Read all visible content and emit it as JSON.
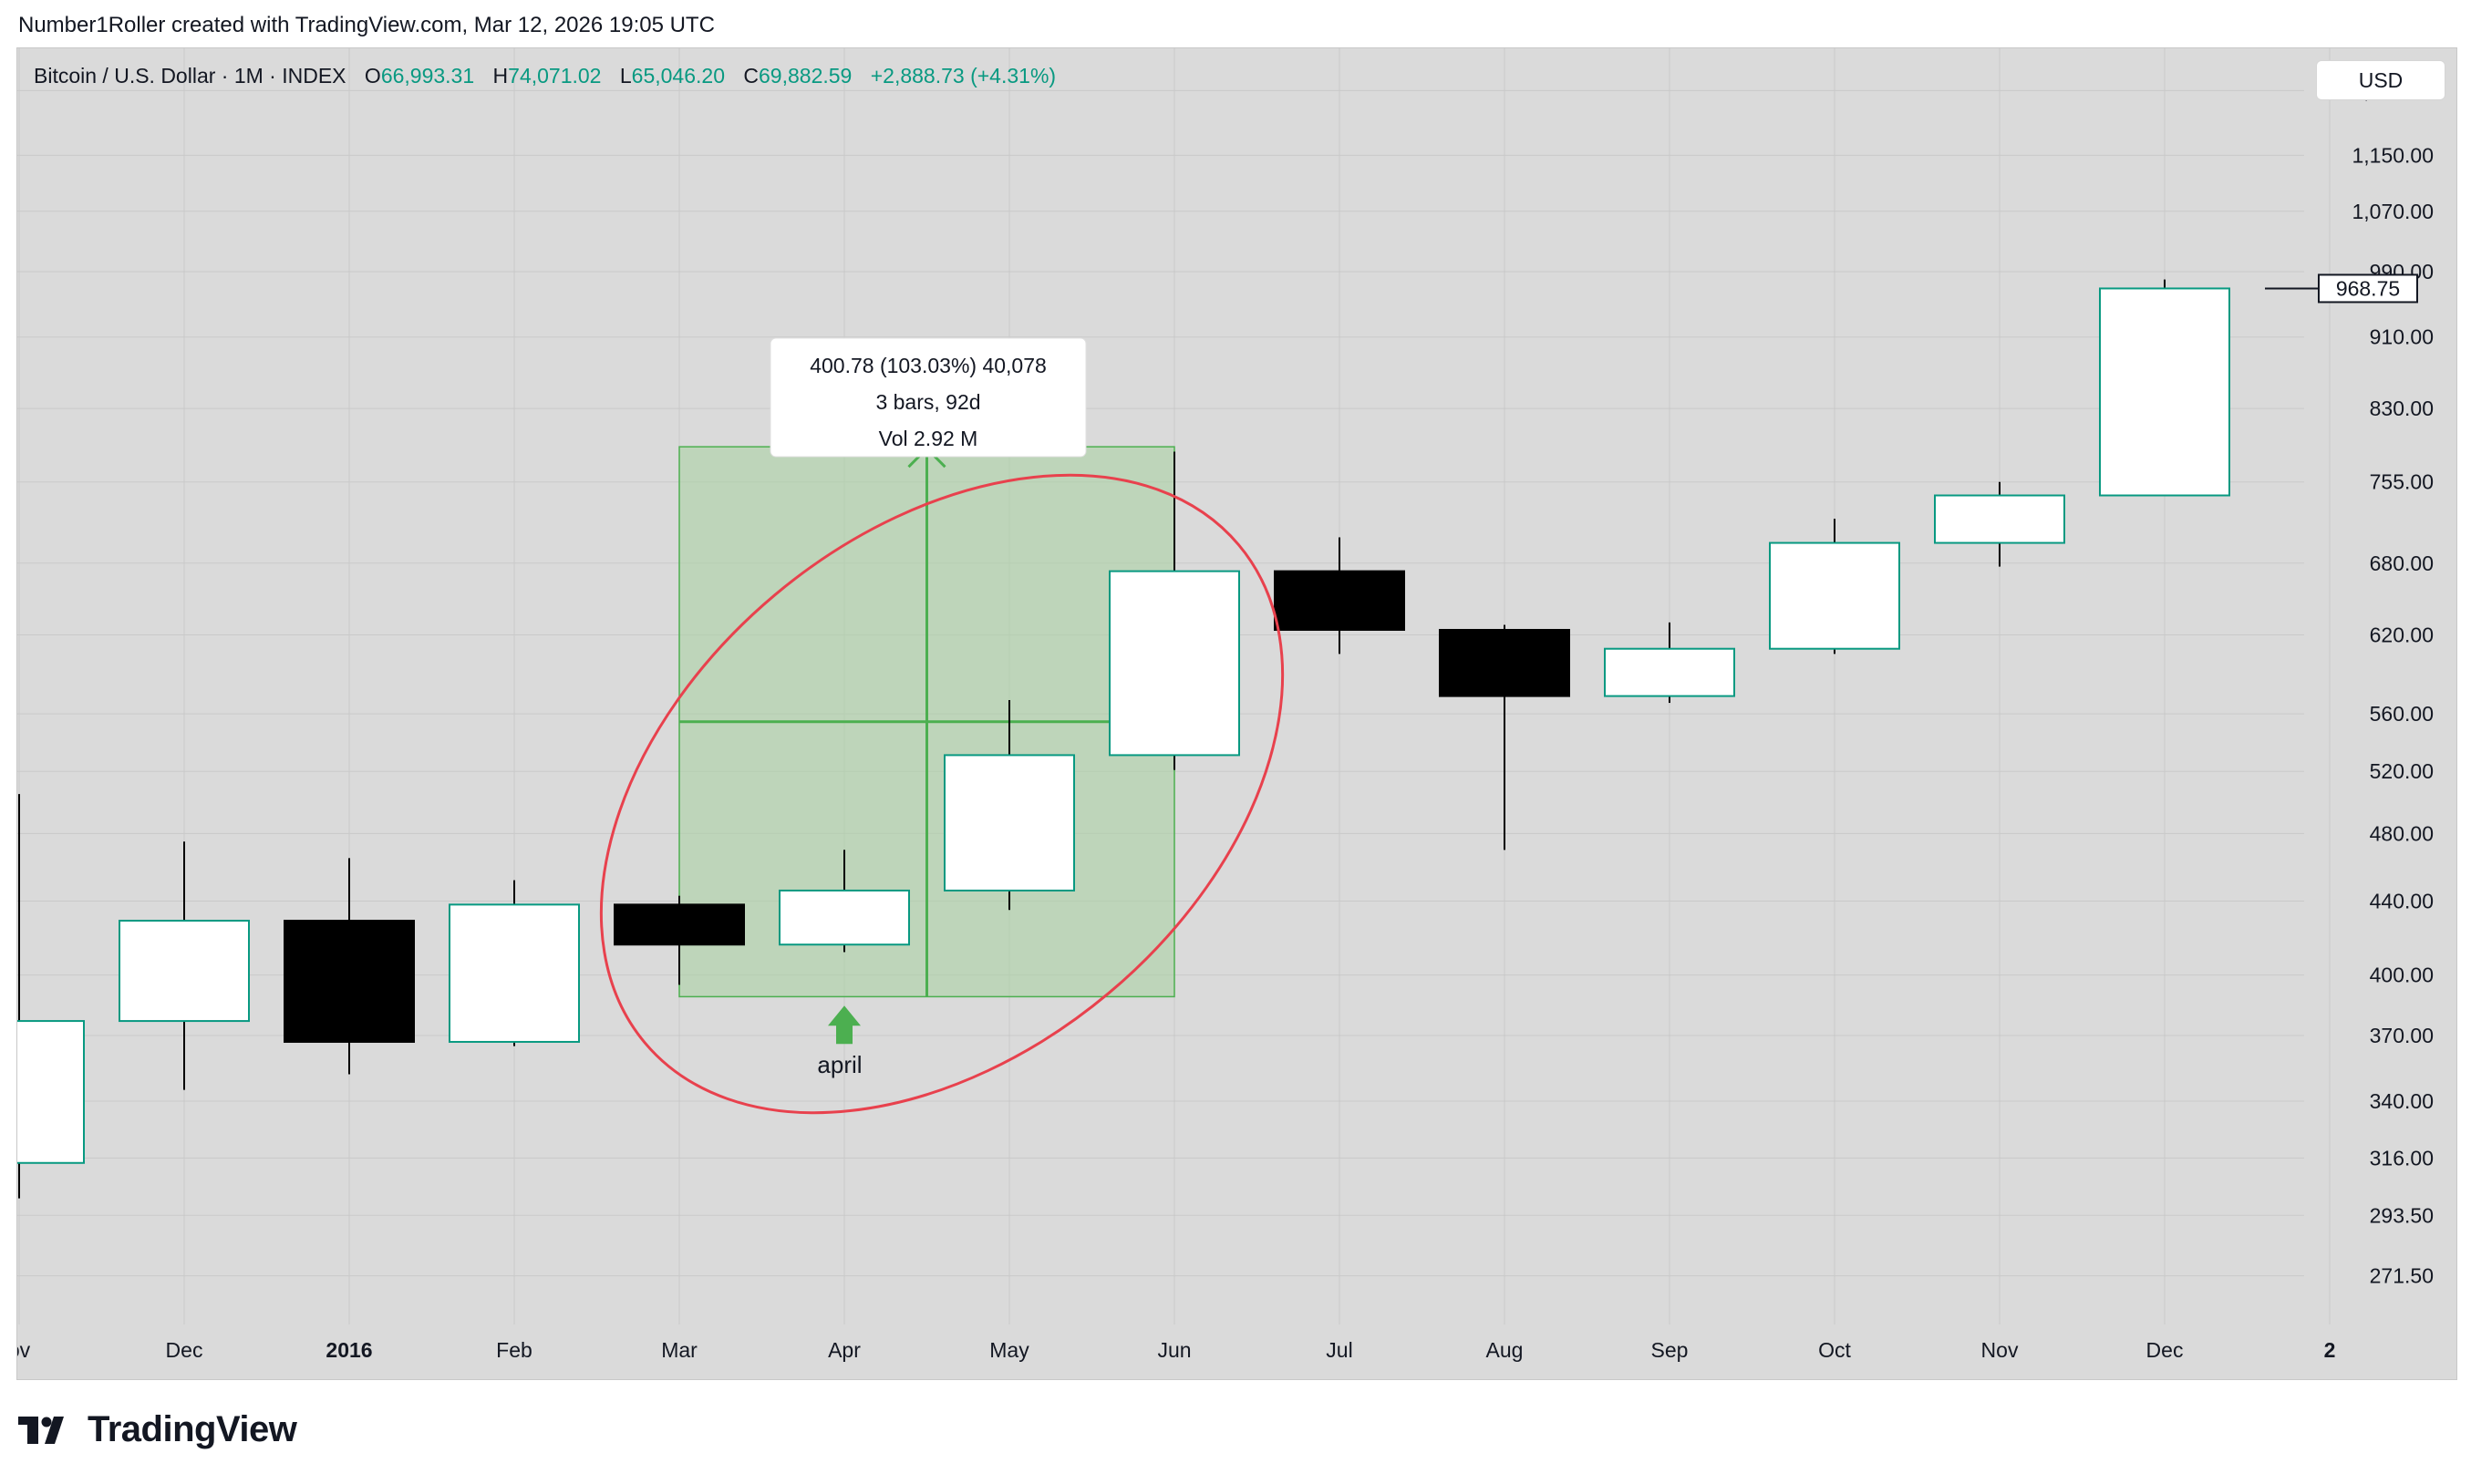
{
  "header": {
    "credit": "Number1Roller created with TradingView.com, Mar 12, 2026 19:05 UTC"
  },
  "legend": {
    "symbol": "Bitcoin / U.S. Dollar · 1M · INDEX",
    "o_label": "O",
    "o_value": "66,993.31",
    "h_label": "H",
    "h_value": "74,071.02",
    "l_label": "L",
    "l_value": "65,046.20",
    "c_label": "C",
    "c_value": "69,882.59",
    "change": "+2,888.73 (+4.31%)"
  },
  "currency": "USD",
  "logo": {
    "text": "TradingView",
    "icon": "tradingview-logo-icon"
  },
  "colors": {
    "background": "#dadada",
    "up_body": "#ffffff",
    "up_border": "#089981",
    "down_body": "#000000",
    "wick": "#000000",
    "measure_fill": "#a8d2a0",
    "measure_stroke": "#4caf50",
    "ellipse": "#e8414d",
    "arrow": "#4caf50",
    "grid": "#c9c9c9"
  },
  "chart_data": {
    "type": "candlestick",
    "title": "Bitcoin / U.S. Dollar · 1M · INDEX",
    "scale": "log",
    "ylim": [
      255,
      1320
    ],
    "y_ticks": [
      "1,250.00",
      "1,150.00",
      "1,070.00",
      "990.00",
      "910.00",
      "830.00",
      "755.00",
      "680.00",
      "620.00",
      "560.00",
      "520.00",
      "480.00",
      "440.00",
      "400.00",
      "370.00",
      "340.00",
      "316.00",
      "293.50",
      "271.50"
    ],
    "x_ticks": [
      {
        "label": "ov",
        "bold": false
      },
      {
        "label": "Dec",
        "bold": false
      },
      {
        "label": "2016",
        "bold": true
      },
      {
        "label": "Feb",
        "bold": false
      },
      {
        "label": "Mar",
        "bold": false
      },
      {
        "label": "Apr",
        "bold": false
      },
      {
        "label": "May",
        "bold": false
      },
      {
        "label": "Jun",
        "bold": false
      },
      {
        "label": "Jul",
        "bold": false
      },
      {
        "label": "Aug",
        "bold": false
      },
      {
        "label": "Sep",
        "bold": false
      },
      {
        "label": "Oct",
        "bold": false
      },
      {
        "label": "Nov",
        "bold": false
      },
      {
        "label": "Dec",
        "bold": false
      },
      {
        "label": "2",
        "bold": true
      }
    ],
    "candles": [
      {
        "month": "Nov 2015",
        "open": 314,
        "high": 505,
        "low": 300,
        "close": 377
      },
      {
        "month": "Dec 2015",
        "open": 377,
        "high": 475,
        "low": 345,
        "close": 429
      },
      {
        "month": "Jan 2016",
        "open": 429,
        "high": 465,
        "low": 352,
        "close": 367
      },
      {
        "month": "Feb 2016",
        "open": 367,
        "high": 452,
        "low": 365,
        "close": 438
      },
      {
        "month": "Mar 2016",
        "open": 438,
        "high": 443,
        "low": 395,
        "close": 416
      },
      {
        "month": "Apr 2016",
        "open": 416,
        "high": 470,
        "low": 412,
        "close": 446
      },
      {
        "month": "May 2016",
        "open": 446,
        "high": 570,
        "low": 435,
        "close": 531
      },
      {
        "month": "Jun 2016",
        "open": 531,
        "high": 785,
        "low": 521,
        "close": 673
      },
      {
        "month": "Jul 2016",
        "open": 673,
        "high": 703,
        "low": 605,
        "close": 624
      },
      {
        "month": "Aug 2016",
        "open": 624,
        "high": 628,
        "low": 470,
        "close": 573
      },
      {
        "month": "Sep 2016",
        "open": 573,
        "high": 630,
        "low": 568,
        "close": 609
      },
      {
        "month": "Oct 2016",
        "open": 609,
        "high": 720,
        "low": 605,
        "close": 698
      },
      {
        "month": "Nov 2016",
        "open": 698,
        "high": 755,
        "low": 677,
        "close": 742
      },
      {
        "month": "Dec 2016",
        "open": 742,
        "high": 980,
        "low": 742,
        "close": 968.75
      }
    ],
    "last_price": "968.75",
    "measure": {
      "line1": "400.78 (103.03%) 40,078",
      "line2": "3 bars, 92d",
      "line3": "Vol 2.92 M",
      "from_price": 389,
      "to_price": 790
    },
    "annotation": {
      "label": "april",
      "month": "Apr 2016"
    }
  }
}
